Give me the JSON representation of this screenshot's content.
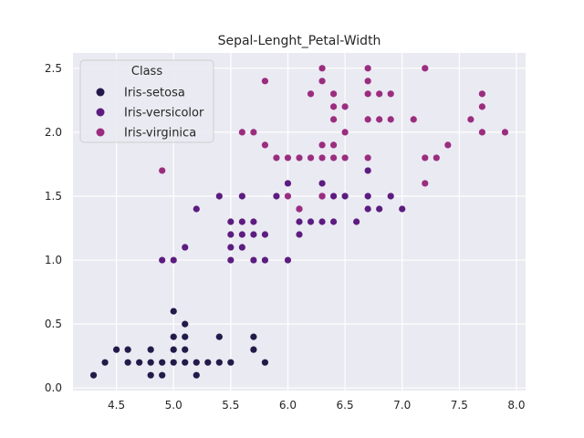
{
  "chart_data": {
    "type": "scatter",
    "title": "Sepal-Lenght_Petal-Width",
    "xlabel": "",
    "ylabel": "",
    "xlim": [
      4.12,
      8.08
    ],
    "ylim": [
      -0.02,
      2.62
    ],
    "xticks": [
      4.5,
      5.0,
      5.5,
      6.0,
      6.5,
      7.0,
      7.5,
      8.0
    ],
    "yticks": [
      0.0,
      0.5,
      1.0,
      1.5,
      2.0,
      2.5
    ],
    "xtick_labels": [
      "4.5",
      "5.0",
      "5.5",
      "6.0",
      "6.5",
      "7.0",
      "7.5",
      "8.0"
    ],
    "ytick_labels": [
      "0.0",
      "0.5",
      "1.0",
      "1.5",
      "2.0",
      "2.5"
    ],
    "grid": true,
    "legend": {
      "title": "Class",
      "placement": "top-left"
    },
    "series": [
      {
        "name": "Iris-setosa",
        "color": "#231a4a",
        "points": [
          [
            4.3,
            0.1
          ],
          [
            4.4,
            0.2
          ],
          [
            4.5,
            0.3
          ],
          [
            4.6,
            0.2
          ],
          [
            4.6,
            0.3
          ],
          [
            4.7,
            0.2
          ],
          [
            4.8,
            0.1
          ],
          [
            4.8,
            0.2
          ],
          [
            4.8,
            0.3
          ],
          [
            4.9,
            0.1
          ],
          [
            4.9,
            0.2
          ],
          [
            5.0,
            0.2
          ],
          [
            5.0,
            0.3
          ],
          [
            5.0,
            0.4
          ],
          [
            5.0,
            0.6
          ],
          [
            5.1,
            0.2
          ],
          [
            5.1,
            0.3
          ],
          [
            5.1,
            0.4
          ],
          [
            5.1,
            0.5
          ],
          [
            5.2,
            0.1
          ],
          [
            5.2,
            0.2
          ],
          [
            5.3,
            0.2
          ],
          [
            5.4,
            0.2
          ],
          [
            5.4,
            0.4
          ],
          [
            5.5,
            0.2
          ],
          [
            5.7,
            0.3
          ],
          [
            5.7,
            0.4
          ],
          [
            5.8,
            0.2
          ]
        ]
      },
      {
        "name": "Iris-versicolor",
        "color": "#5c1c80",
        "points": [
          [
            4.9,
            1.0
          ],
          [
            5.0,
            1.0
          ],
          [
            5.1,
            1.1
          ],
          [
            5.2,
            1.4
          ],
          [
            5.4,
            1.5
          ],
          [
            5.5,
            1.0
          ],
          [
            5.5,
            1.1
          ],
          [
            5.5,
            1.2
          ],
          [
            5.5,
            1.3
          ],
          [
            5.6,
            1.1
          ],
          [
            5.6,
            1.2
          ],
          [
            5.6,
            1.3
          ],
          [
            5.6,
            1.5
          ],
          [
            5.7,
            1.0
          ],
          [
            5.7,
            1.2
          ],
          [
            5.7,
            1.3
          ],
          [
            5.8,
            1.0
          ],
          [
            5.8,
            1.2
          ],
          [
            5.9,
            1.5
          ],
          [
            6.0,
            1.0
          ],
          [
            6.0,
            1.6
          ],
          [
            6.1,
            1.2
          ],
          [
            6.1,
            1.3
          ],
          [
            6.1,
            1.4
          ],
          [
            6.2,
            1.3
          ],
          [
            6.3,
            1.3
          ],
          [
            6.3,
            1.5
          ],
          [
            6.3,
            1.6
          ],
          [
            6.4,
            1.3
          ],
          [
            6.4,
            1.5
          ],
          [
            6.5,
            1.5
          ],
          [
            6.6,
            1.3
          ],
          [
            6.7,
            1.4
          ],
          [
            6.7,
            1.5
          ],
          [
            6.7,
            1.7
          ],
          [
            6.8,
            1.4
          ],
          [
            6.9,
            1.5
          ],
          [
            7.0,
            1.4
          ]
        ]
      },
      {
        "name": "Iris-virginica",
        "color": "#9b2d7f",
        "points": [
          [
            4.9,
            1.7
          ],
          [
            5.6,
            2.0
          ],
          [
            5.7,
            2.0
          ],
          [
            5.8,
            1.9
          ],
          [
            5.8,
            2.4
          ],
          [
            5.9,
            1.8
          ],
          [
            6.0,
            1.5
          ],
          [
            6.0,
            1.8
          ],
          [
            6.1,
            1.4
          ],
          [
            6.1,
            1.8
          ],
          [
            6.2,
            1.8
          ],
          [
            6.2,
            2.3
          ],
          [
            6.3,
            1.5
          ],
          [
            6.3,
            1.8
          ],
          [
            6.3,
            1.9
          ],
          [
            6.3,
            2.4
          ],
          [
            6.3,
            2.5
          ],
          [
            6.4,
            1.8
          ],
          [
            6.4,
            1.9
          ],
          [
            6.4,
            2.1
          ],
          [
            6.4,
            2.2
          ],
          [
            6.4,
            2.3
          ],
          [
            6.5,
            1.8
          ],
          [
            6.5,
            2.0
          ],
          [
            6.5,
            2.2
          ],
          [
            6.7,
            1.8
          ],
          [
            6.7,
            2.1
          ],
          [
            6.7,
            2.3
          ],
          [
            6.7,
            2.4
          ],
          [
            6.7,
            2.5
          ],
          [
            6.8,
            2.1
          ],
          [
            6.8,
            2.3
          ],
          [
            6.9,
            2.1
          ],
          [
            6.9,
            2.3
          ],
          [
            7.1,
            2.1
          ],
          [
            7.2,
            1.6
          ],
          [
            7.2,
            1.8
          ],
          [
            7.2,
            2.5
          ],
          [
            7.3,
            1.8
          ],
          [
            7.4,
            1.9
          ],
          [
            7.6,
            2.1
          ],
          [
            7.7,
            2.0
          ],
          [
            7.7,
            2.2
          ],
          [
            7.7,
            2.3
          ],
          [
            7.9,
            2.0
          ]
        ]
      }
    ]
  },
  "colors": {
    "plot_background": "#eaeaf2",
    "grid": "#ffffff",
    "text": "#262626"
  }
}
